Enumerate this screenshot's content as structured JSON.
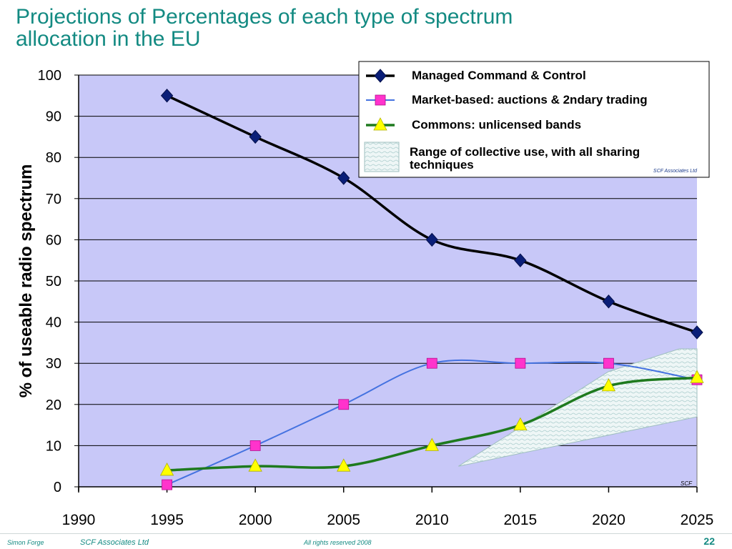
{
  "slide": {
    "title_line1": "Projections of Percentages of each type of spectrum",
    "title_line2": "allocation in the EU"
  },
  "footer": {
    "author": "Simon Forge",
    "company": "SCF  Associates Ltd",
    "rights": "All rights reserved 2008",
    "page": "22"
  },
  "colors": {
    "title": "#138a82",
    "plot_bg": "#c8c8f8",
    "managed": "#000000",
    "managed_marker": "#0a1e78",
    "market": "#4472e0",
    "market_marker": "#ff33cc",
    "commons": "#1e7a1e",
    "commons_marker": "#ffff00"
  },
  "chart_data": {
    "type": "line",
    "title": "",
    "xlabel": "",
    "ylabel": "% of useable radio spectrum",
    "xlim": [
      1990,
      2025
    ],
    "ylim": [
      0,
      100
    ],
    "x_ticks": [
      "1990",
      "1995",
      "2000",
      "2005",
      "2010",
      "2015",
      "2020",
      "2025"
    ],
    "y_ticks": [
      "0",
      "10",
      "20",
      "30",
      "40",
      "50",
      "60",
      "70",
      "80",
      "90",
      "100"
    ],
    "grid": "horizontal",
    "legend_position": "top-right",
    "series": [
      {
        "name": "Managed Command & Control",
        "marker": "diamond",
        "x": [
          1995,
          2000,
          2005,
          2010,
          2015,
          2020,
          2025
        ],
        "y": [
          95,
          85,
          75,
          60,
          55,
          45,
          37.5
        ]
      },
      {
        "name": "Market-based: auctions & 2ndary trading",
        "marker": "square",
        "x": [
          1995,
          2000,
          2005,
          2010,
          2015,
          2020,
          2025
        ],
        "y": [
          0.5,
          10,
          20,
          30,
          30,
          30,
          26
        ]
      },
      {
        "name": "Commons: unlicensed bands",
        "marker": "triangle",
        "x": [
          1995,
          2000,
          2005,
          2010,
          2015,
          2020,
          2025
        ],
        "y": [
          4,
          5,
          5,
          10,
          15,
          24.5,
          26.5
        ]
      }
    ],
    "shaded_range": {
      "name": "Range of collective use, with all sharing techniques",
      "upper": {
        "x": [
          2011.5,
          2020,
          2024,
          2025
        ],
        "y": [
          5,
          28,
          33.5,
          33.5
        ]
      },
      "lower": {
        "x": [
          2025,
          2011.5
        ],
        "y": [
          17,
          5
        ]
      }
    },
    "annotations": [
      "SCF  Associates Ltd",
      "SCF"
    ]
  }
}
